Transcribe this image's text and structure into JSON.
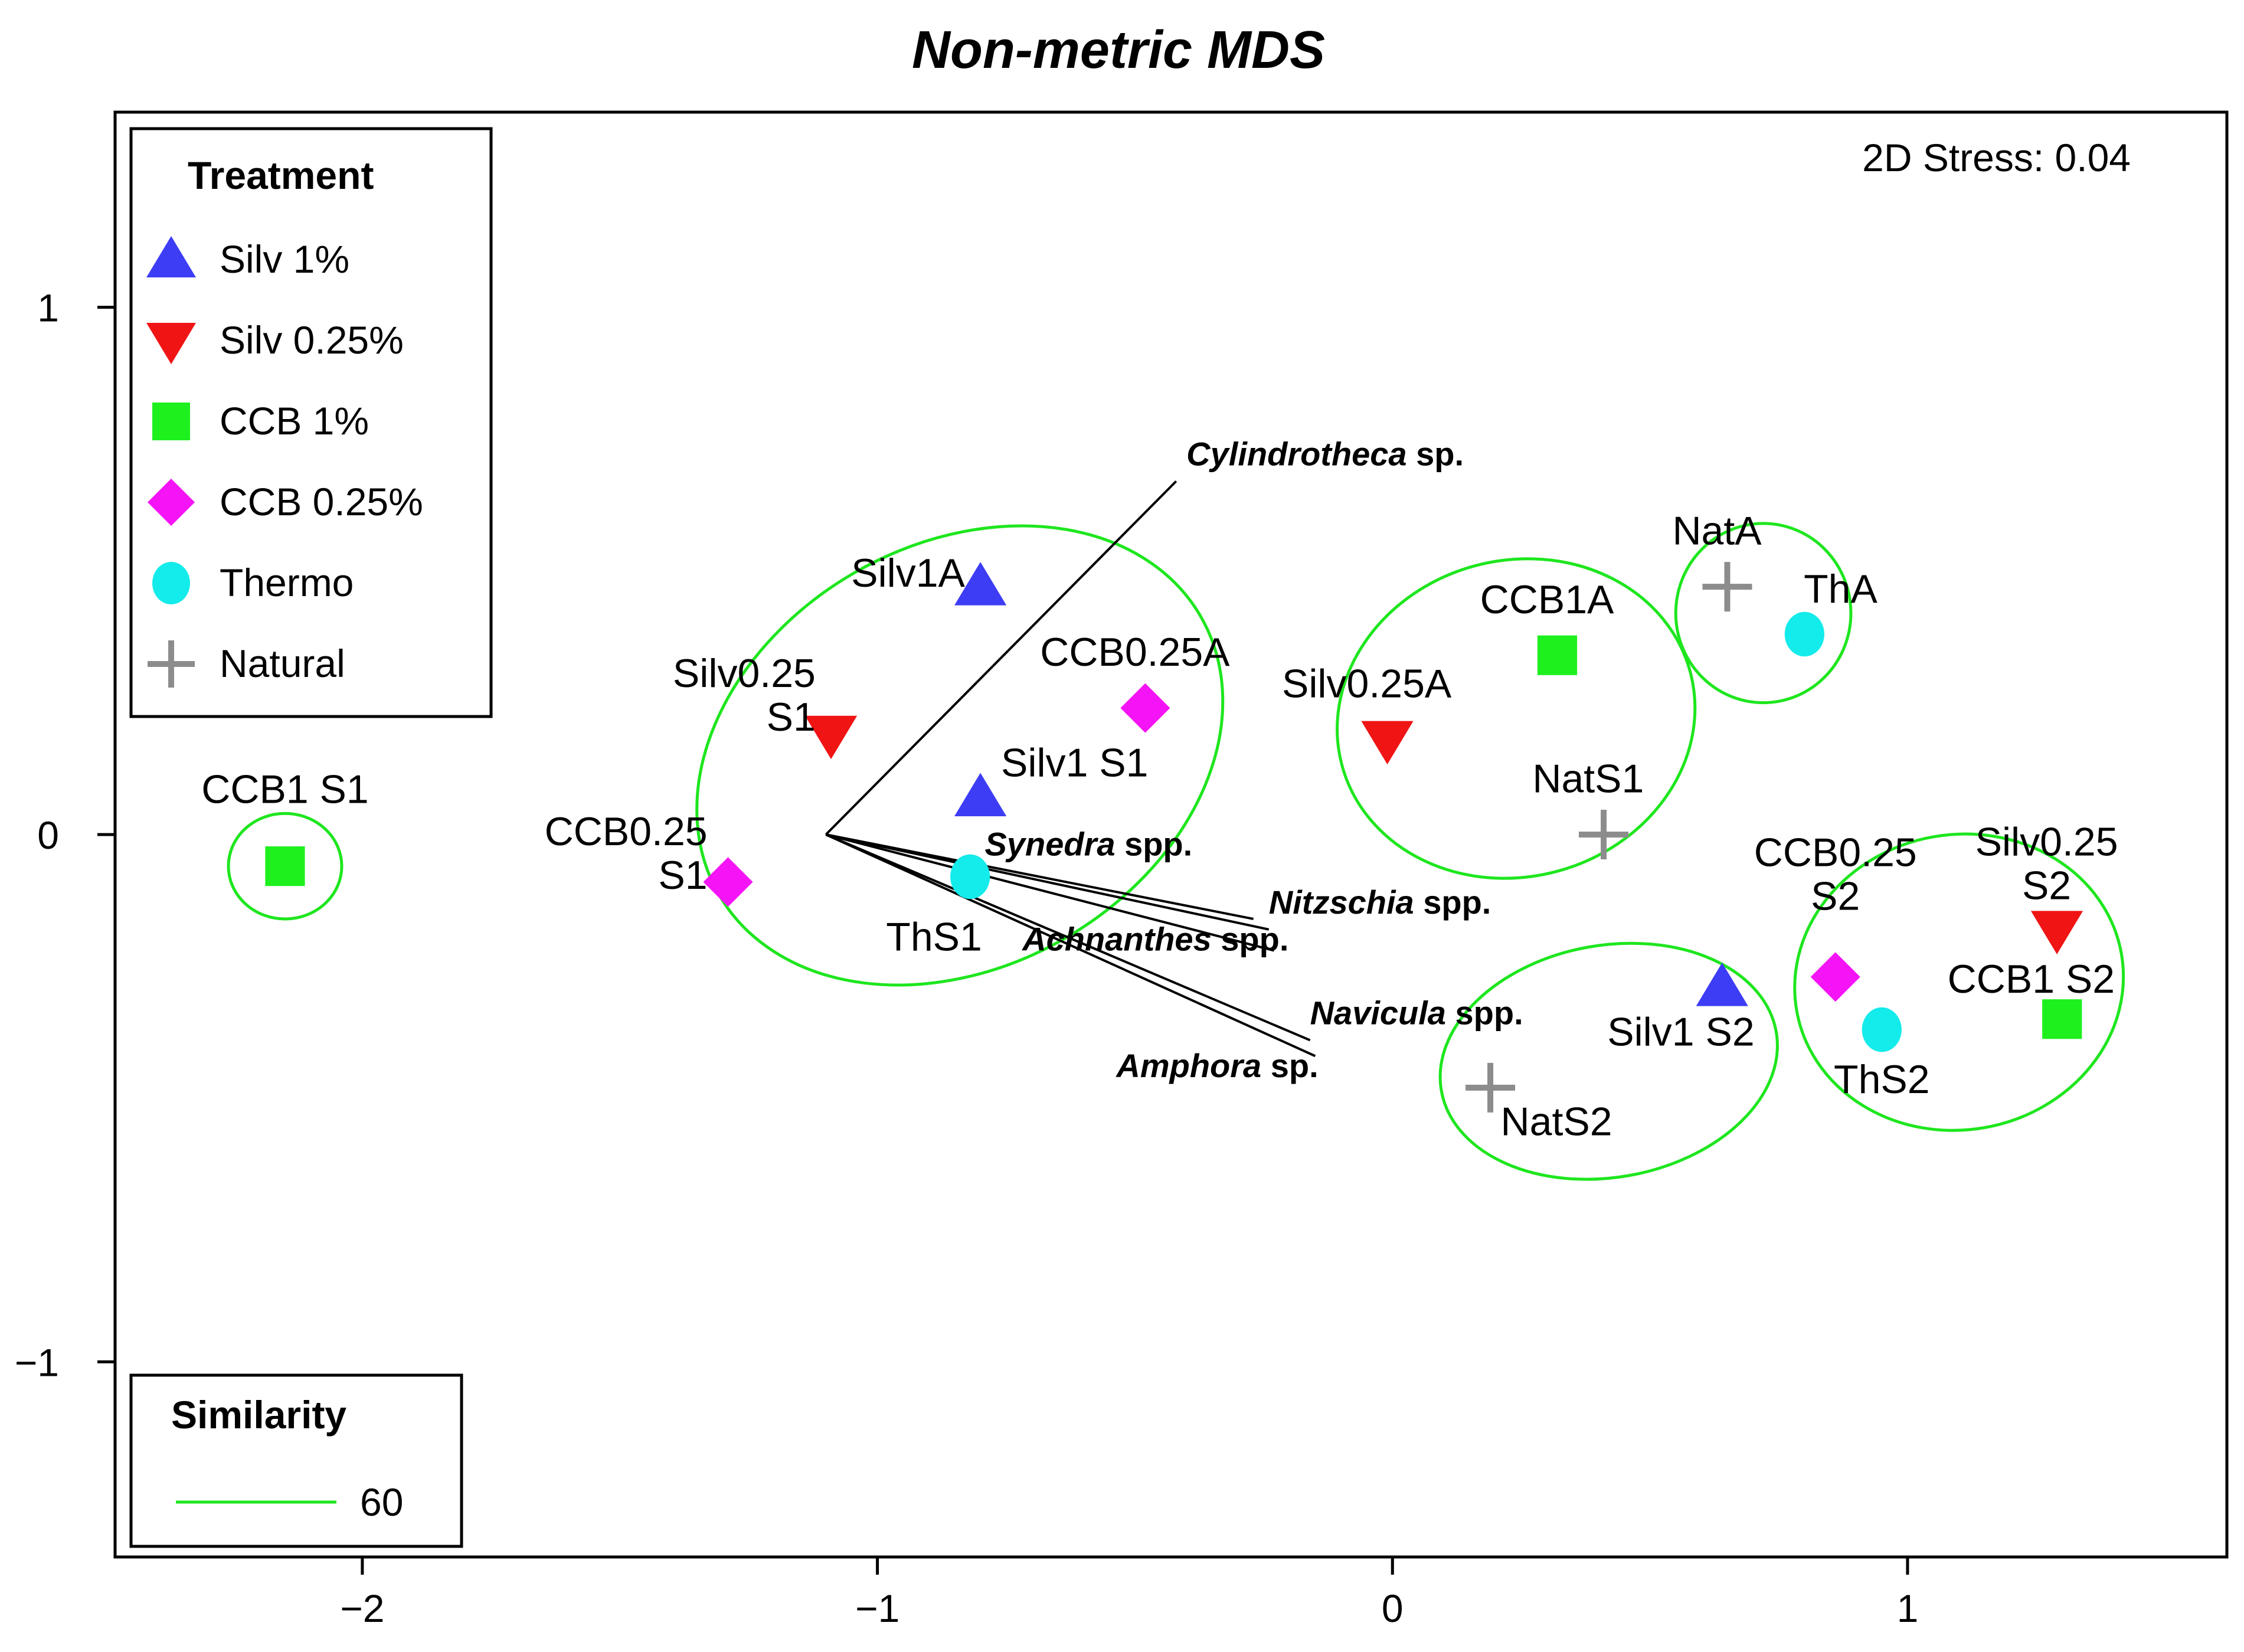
{
  "chart_data": {
    "type": "scatter",
    "title": "Non-metric MDS",
    "stress_label": "2D Stress: 0.04",
    "xlim": [
      -2.48,
      1.62
    ],
    "ylim": [
      -1.37,
      1.37
    ],
    "x_ticks": [
      -2,
      -1,
      0,
      1
    ],
    "x_tick_labels": [
      "−2",
      "−1",
      "0",
      "1"
    ],
    "y_ticks": [
      1,
      0,
      -1
    ],
    "y_tick_labels": [
      "1",
      "0",
      "−1"
    ],
    "treatments": [
      {
        "id": "silv1",
        "label": "Silv  1%",
        "marker": "triangle-up",
        "color": "#3d3df5"
      },
      {
        "id": "silv025",
        "label": "Silv  0.25%",
        "marker": "triangle-down",
        "color": "#f01414"
      },
      {
        "id": "ccb1",
        "label": "CCB  1%",
        "marker": "square",
        "color": "#1ef01e"
      },
      {
        "id": "ccb025",
        "label": "CCB  0.25%",
        "marker": "diamond",
        "color": "#f514f5"
      },
      {
        "id": "thermo",
        "label": "Thermo",
        "marker": "circle",
        "color": "#14ebeb"
      },
      {
        "id": "natural",
        "label": "Natural",
        "marker": "plus",
        "color": "#8c8c8c"
      }
    ],
    "points": [
      {
        "treatment": "silv1",
        "x": -0.8,
        "y": 0.47,
        "label": [
          "Silv1A"
        ],
        "anchor": "end",
        "lx": -0.83,
        "ly": 0.47
      },
      {
        "treatment": "silv1",
        "x": -0.8,
        "y": 0.07,
        "label": [
          "Silv1 S1"
        ],
        "anchor": "start",
        "lx": -0.76,
        "ly": 0.11
      },
      {
        "treatment": "silv1",
        "x": 0.64,
        "y": -0.29,
        "label": [
          "Silv1 S2"
        ],
        "anchor": "middle",
        "lx": 0.56,
        "ly": -0.4
      },
      {
        "treatment": "silv025",
        "x": -1.09,
        "y": 0.19,
        "label": [
          "Silv0.25",
          "S1"
        ],
        "anchor": "end",
        "lx": -1.12,
        "ly": 0.28
      },
      {
        "treatment": "silv025",
        "x": -0.01,
        "y": 0.18,
        "label": [
          "Silv0.25A"
        ],
        "anchor": "middle",
        "lx": -0.05,
        "ly": 0.26
      },
      {
        "treatment": "silv025",
        "x": 1.29,
        "y": -0.18,
        "label": [
          "Silv0.25",
          "S2"
        ],
        "anchor": "middle",
        "lx": 1.27,
        "ly": -0.04
      },
      {
        "treatment": "ccb1",
        "x": 0.32,
        "y": 0.34,
        "label": [
          "CCB1A"
        ],
        "anchor": "middle",
        "lx": 0.3,
        "ly": 0.42
      },
      {
        "treatment": "ccb1",
        "x": -2.15,
        "y": -0.06,
        "label": [
          "CCB1 S1"
        ],
        "anchor": "middle",
        "lx": -2.15,
        "ly": 0.06
      },
      {
        "treatment": "ccb1",
        "x": 1.3,
        "y": -0.35,
        "label": [
          "CCB1 S2"
        ],
        "anchor": "middle",
        "lx": 1.24,
        "ly": -0.3
      },
      {
        "treatment": "ccb025",
        "x": -0.48,
        "y": 0.24,
        "label": [
          "CCB0.25A"
        ],
        "anchor": "middle",
        "lx": -0.5,
        "ly": 0.32
      },
      {
        "treatment": "ccb025",
        "x": -1.29,
        "y": -0.09,
        "label": [
          "CCB0.25",
          "S1"
        ],
        "anchor": "end",
        "lx": -1.33,
        "ly": -0.02
      },
      {
        "treatment": "ccb025",
        "x": 0.86,
        "y": -0.27,
        "label": [
          "CCB0.25",
          "S2"
        ],
        "anchor": "middle",
        "lx": 0.86,
        "ly": -0.06
      },
      {
        "treatment": "thermo",
        "x": -0.82,
        "y": -0.08,
        "label": [
          "ThS1"
        ],
        "anchor": "middle",
        "lx": -0.89,
        "ly": -0.22
      },
      {
        "treatment": "thermo",
        "x": 0.8,
        "y": 0.38,
        "label": [
          "ThA"
        ],
        "anchor": "middle",
        "lx": 0.87,
        "ly": 0.44
      },
      {
        "treatment": "thermo",
        "x": 0.95,
        "y": -0.37,
        "label": [
          "ThS2"
        ],
        "anchor": "middle",
        "lx": 0.95,
        "ly": -0.49
      },
      {
        "treatment": "natural",
        "x": 0.65,
        "y": 0.47,
        "label": [
          "NatA"
        ],
        "anchor": "middle",
        "lx": 0.63,
        "ly": 0.55
      },
      {
        "treatment": "natural",
        "x": 0.41,
        "y": 0.0,
        "label": [
          "NatS1"
        ],
        "anchor": "middle",
        "lx": 0.38,
        "ly": 0.08
      },
      {
        "treatment": "natural",
        "x": 0.19,
        "y": -0.48,
        "label": [
          "NatS2"
        ],
        "anchor": "start",
        "lx": 0.21,
        "ly": -0.57
      }
    ],
    "similarity_contours": [
      {
        "cx": -0.84,
        "cy": 0.15,
        "rx": 0.54,
        "ry": 0.4,
        "angle": -30
      },
      {
        "cx": -2.15,
        "cy": -0.06,
        "rx": 0.11,
        "ry": 0.1,
        "angle": 0
      },
      {
        "cx": 0.24,
        "cy": 0.22,
        "rx": 0.35,
        "ry": 0.3,
        "angle": -15
      },
      {
        "cx": 0.72,
        "cy": 0.42,
        "rx": 0.17,
        "ry": 0.17,
        "angle": 0
      },
      {
        "cx": 0.42,
        "cy": -0.43,
        "rx": 0.33,
        "ry": 0.22,
        "angle": -10
      },
      {
        "cx": 1.1,
        "cy": -0.28,
        "rx": 0.32,
        "ry": 0.28,
        "angle": -10
      }
    ],
    "vector_origin": {
      "x": -1.1,
      "y": 0.0
    },
    "vectors": [
      {
        "x": -0.42,
        "y": 0.67,
        "name": "Cylindrotheca",
        "suffix": " sp.",
        "lx": -0.4,
        "ly": 0.7,
        "anchor": "start"
      },
      {
        "x": -0.27,
        "y": -0.16,
        "name": "Synedra",
        "suffix": " spp.",
        "lx": -0.59,
        "ly": -0.04,
        "anchor": "middle"
      },
      {
        "x": -0.24,
        "y": -0.18,
        "name": "Nitzschia",
        "suffix": " spp.",
        "lx": -0.24,
        "ly": -0.15,
        "anchor": "start"
      },
      {
        "x": -0.23,
        "y": -0.22,
        "name": "Achnanthes",
        "suffix": " spp.",
        "lx": -0.46,
        "ly": -0.22,
        "anchor": "middle"
      },
      {
        "x": -0.16,
        "y": -0.39,
        "name": "Navicula",
        "suffix": " spp.",
        "lx": -0.16,
        "ly": -0.36,
        "anchor": "start"
      },
      {
        "x": -0.15,
        "y": -0.42,
        "name": "Amphora",
        "suffix": " sp.",
        "lx": -0.34,
        "ly": -0.46,
        "anchor": "middle"
      }
    ],
    "legend_treatment_title": "Treatment",
    "legend_similarity_title": "Similarity",
    "similarity_value": "60",
    "contour_color": "#1ee61e"
  }
}
